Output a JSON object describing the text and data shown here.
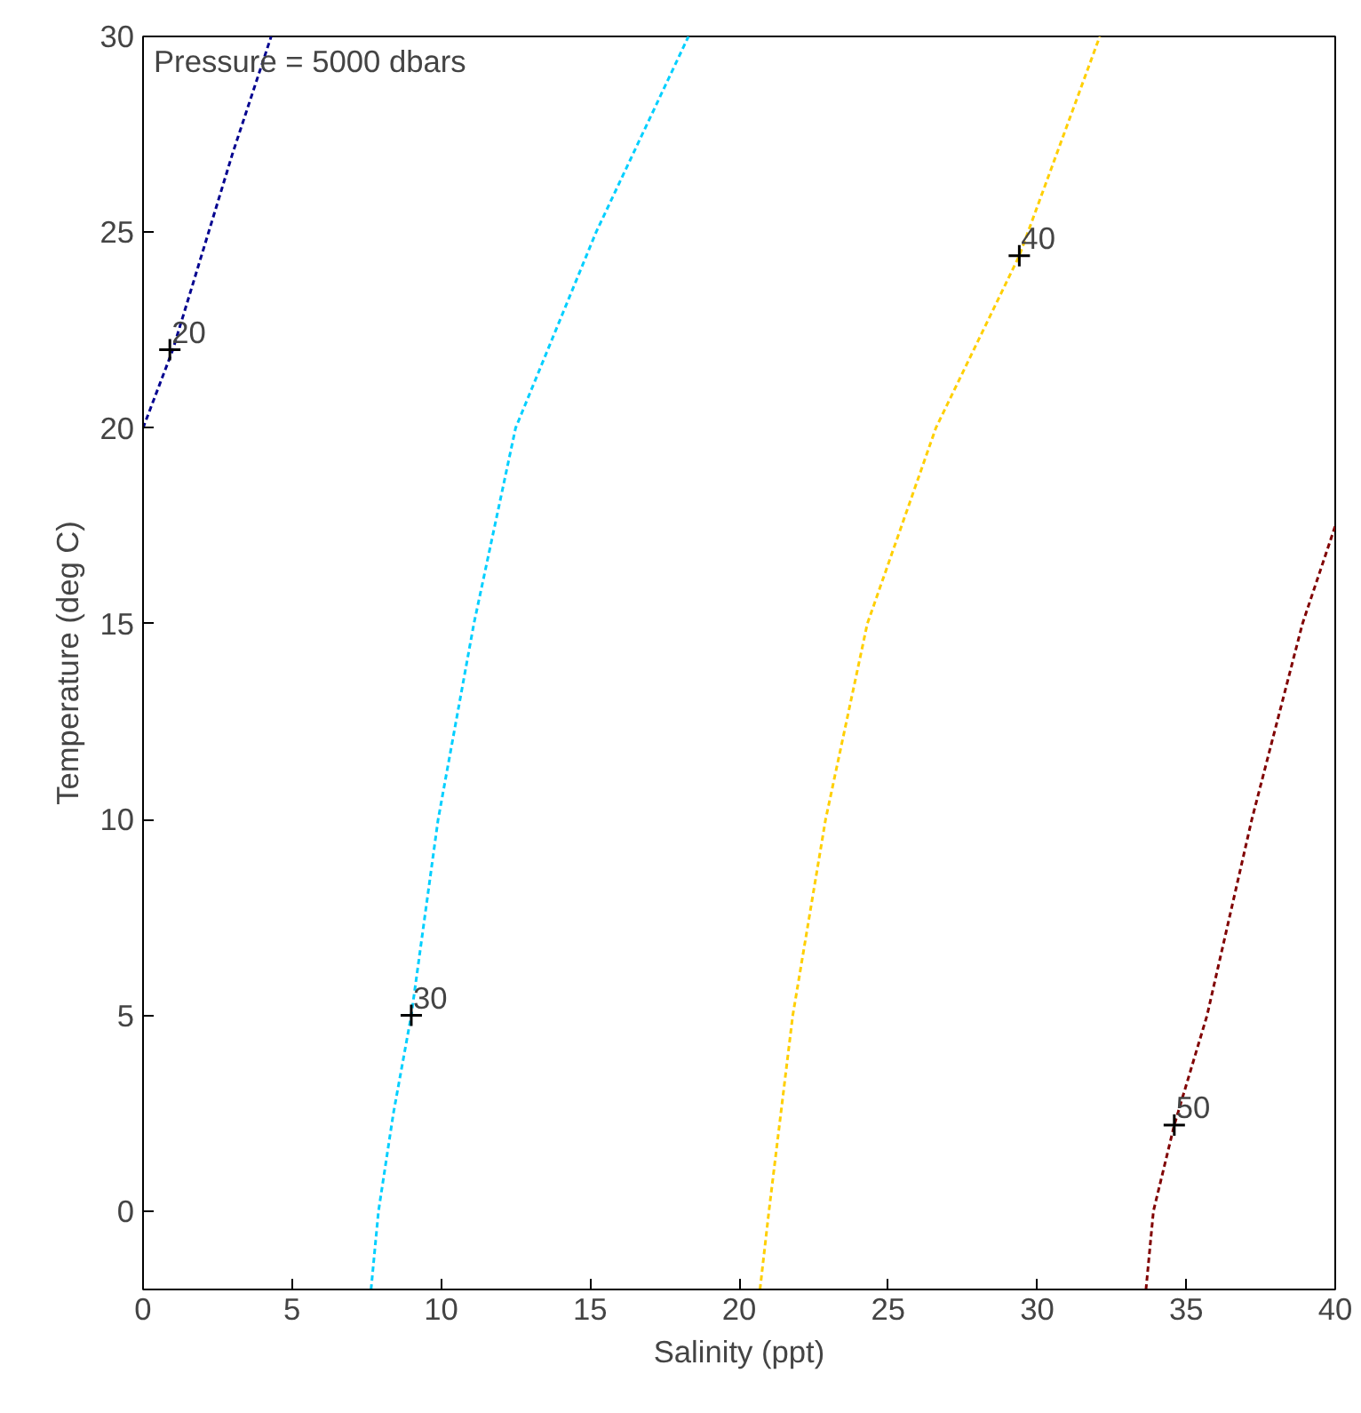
{
  "chart_data": {
    "type": "line",
    "xlabel": "Salinity (ppt)",
    "ylabel": "Temperature (deg C)",
    "xlim": [
      0,
      40
    ],
    "ylim": [
      -2,
      30
    ],
    "xticks": [
      0,
      5,
      10,
      15,
      20,
      25,
      30,
      35,
      40
    ],
    "yticks": [
      0,
      5,
      10,
      15,
      20,
      25,
      30
    ],
    "grid": false,
    "marker": "none",
    "line_style": "dashed",
    "series": [
      {
        "color": "#00008f",
        "x": [
          0,
          1,
          2,
          3,
          4.3
        ],
        "values": [
          20,
          22,
          24.5,
          27,
          30
        ]
      },
      {
        "color": "#00cfff",
        "x": [
          7.65,
          7.9,
          8.4,
          9.0,
          9.9,
          11.1,
          12.5,
          15.2,
          18.3
        ],
        "values": [
          -2,
          0,
          2.5,
          5,
          10,
          15,
          20,
          25,
          30
        ]
      },
      {
        "color": "#ffcf00",
        "x": [
          20.7,
          21.0,
          21.8,
          22.9,
          24.3,
          26.6,
          29.4,
          32.1
        ],
        "values": [
          -2,
          0,
          5,
          10,
          15,
          20,
          24.4,
          30
        ]
      },
      {
        "color": "#800000",
        "x": [
          33.65,
          33.9,
          34.6,
          35.7,
          37.2,
          38.9,
          40
        ],
        "values": [
          -2,
          0,
          2.2,
          5,
          10,
          15,
          17.5
        ]
      }
    ],
    "annotations": [
      "Pressure = 5000 dbars",
      {
        "text": "20",
        "x": 0.9,
        "y": 22
      },
      {
        "text": "30",
        "x": 9.0,
        "y": 5
      },
      {
        "text": "40",
        "x": 29.4,
        "y": 24.4
      },
      {
        "text": "50",
        "x": 34.6,
        "y": 2.2
      }
    ]
  }
}
